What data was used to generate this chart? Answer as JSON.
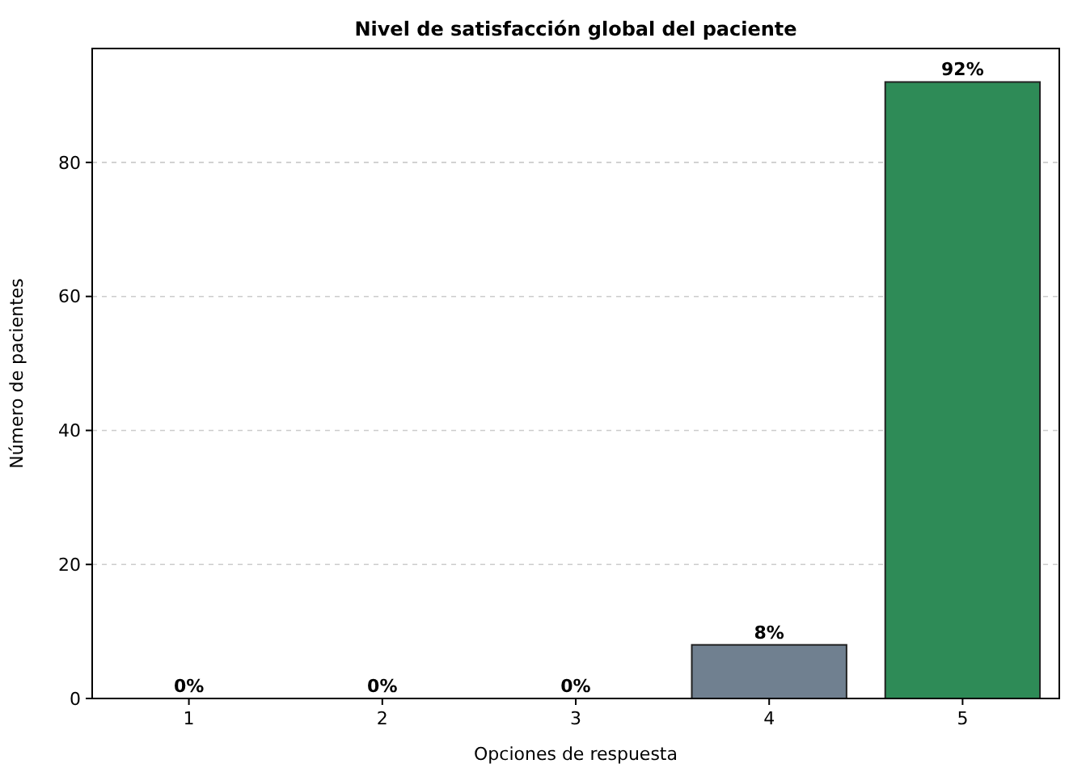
{
  "chart_data": {
    "type": "bar",
    "title": "Nivel de satisfacción global del paciente",
    "xlabel": "Opciones de respuesta",
    "ylabel": "Número de pacientes",
    "categories": [
      "1",
      "2",
      "3",
      "4",
      "5"
    ],
    "values": [
      0,
      0,
      0,
      8,
      92
    ],
    "colors": [
      "#b0b8c0",
      "#b0b8c0",
      "#b0b8c0",
      "#708090",
      "#2e8b57"
    ],
    "value_labels": [
      "0%",
      "0%",
      "0%",
      "8%",
      "92%"
    ],
    "ylim": [
      0,
      97
    ],
    "yticks": [
      0,
      20,
      40,
      60,
      80
    ],
    "grid": "y"
  }
}
